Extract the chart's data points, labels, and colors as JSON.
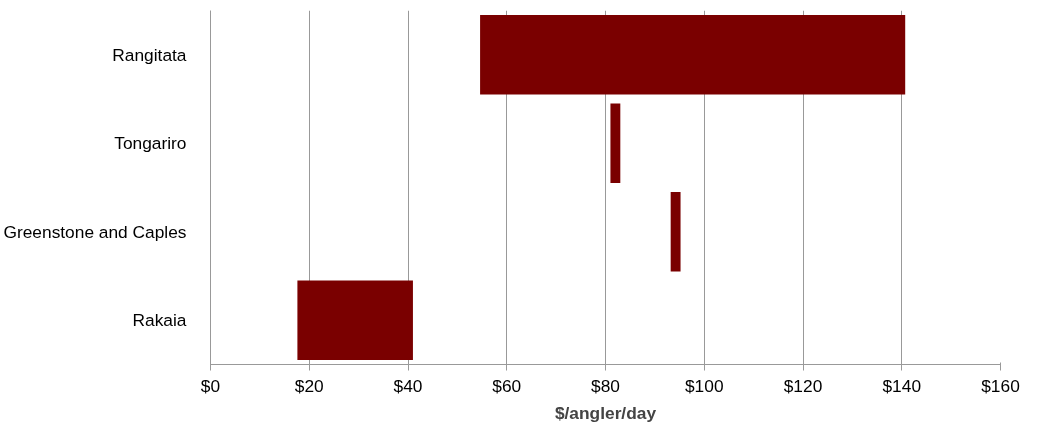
{
  "chart_data": {
    "type": "bar",
    "orientation": "horizontal",
    "xlabel": "$/angler/day",
    "categories": [
      "Rangitata",
      "Tongariro",
      "Greenstone and Caples",
      "Rakaia"
    ],
    "base": [
      54.6,
      81.0,
      93.2,
      17.6
    ],
    "values": [
      86.1,
      2.0,
      2.0,
      23.4
    ],
    "color": "#7a0000",
    "xlim": [
      0,
      160
    ],
    "xticks": [
      {
        "value": 0,
        "label": "$0"
      },
      {
        "value": 20,
        "label": "$20"
      },
      {
        "value": 40,
        "label": "$40"
      },
      {
        "value": 60,
        "label": "$60"
      },
      {
        "value": 80,
        "label": "$80"
      },
      {
        "value": 100,
        "label": "$100"
      },
      {
        "value": 120,
        "label": "$120"
      },
      {
        "value": 140,
        "label": "$140"
      },
      {
        "value": 160,
        "label": "$160"
      }
    ],
    "grid": "x"
  }
}
